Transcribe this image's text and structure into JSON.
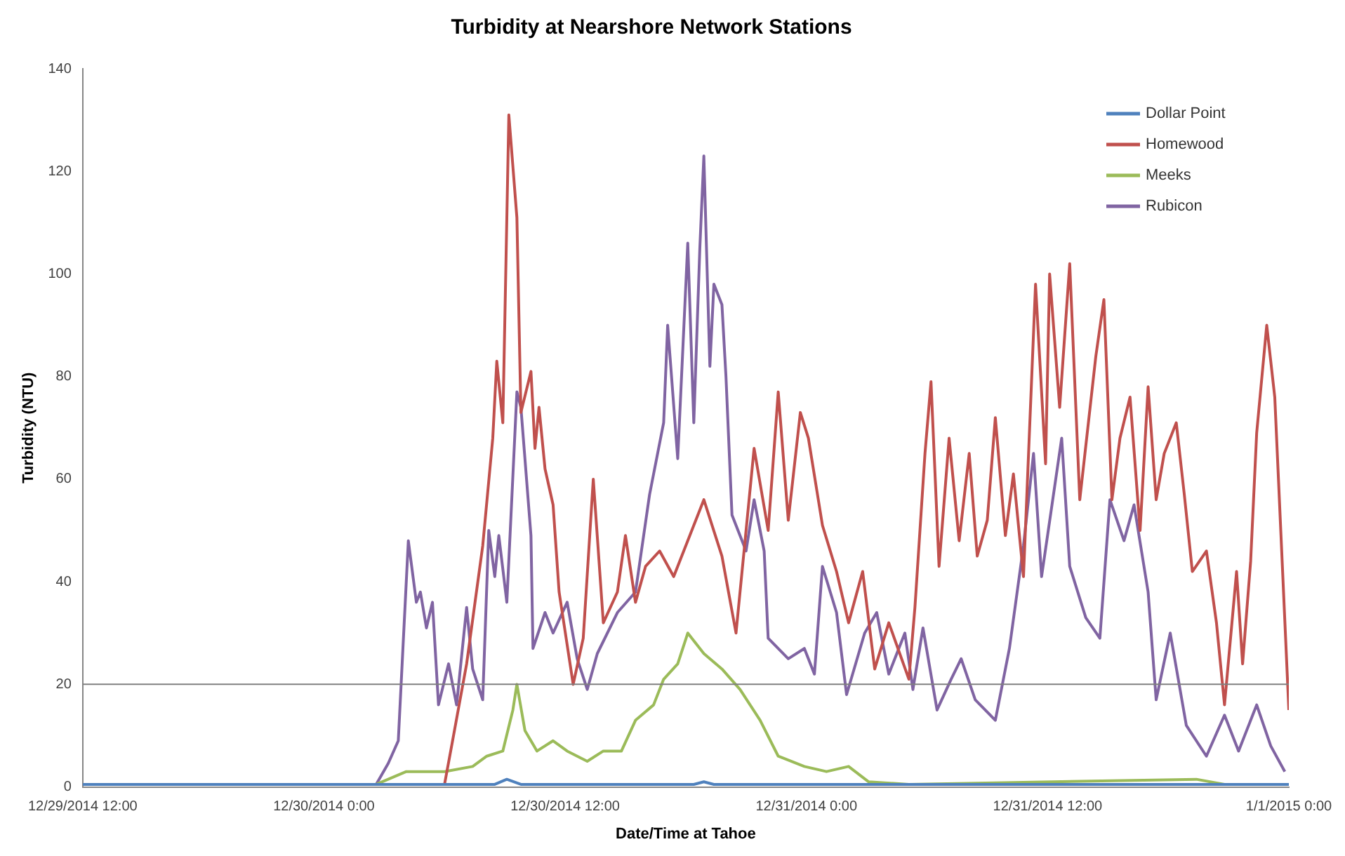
{
  "chart_data": {
    "type": "line",
    "title": "Turbidity at Nearshore Network Stations",
    "xlabel": "Date/Time at Tahoe",
    "ylabel": "Turbidity (NTU)",
    "xlim": [
      "2014-12-29T12:00",
      "2015-01-01T00:00"
    ],
    "xticks": [
      {
        "value": "2014-12-29T12:00",
        "label": "12/29/2014 12:00"
      },
      {
        "value": "2014-12-30T00:00",
        "label": "12/30/2014 0:00"
      },
      {
        "value": "2014-12-30T12:00",
        "label": "12/30/2014 12:00"
      },
      {
        "value": "2014-12-31T00:00",
        "label": "12/31/2014 0:00"
      },
      {
        "value": "2014-12-31T12:00",
        "label": "12/31/2014 12:00"
      },
      {
        "value": "2015-01-01T00:00",
        "label": "1/1/2015 0:00"
      }
    ],
    "ylim": [
      0,
      140
    ],
    "yticks": [
      0,
      20,
      40,
      60,
      80,
      100,
      120,
      140
    ],
    "grid": false,
    "legend": "top right",
    "marker": "none",
    "line_style": "solid",
    "ref_lines": [
      {
        "axis": "y",
        "value": 20,
        "color": "#7f7f7f"
      }
    ],
    "series": [
      {
        "name": "Dollar Point",
        "color": "#4f81bd",
        "x": [
          "2014-12-29T12:00",
          "2014-12-30T08:30",
          "2014-12-30T09:06",
          "2014-12-30T09:48",
          "2014-12-30T18:24",
          "2014-12-30T18:54",
          "2014-12-30T19:24",
          "2015-01-01T00:00"
        ],
        "values": [
          0.5,
          0.5,
          1.5,
          0.5,
          0.5,
          1,
          0.5,
          0.5
        ]
      },
      {
        "name": "Homewood",
        "color": "#c0504d",
        "x": [
          "2014-12-29T12:00",
          "2014-12-30T06:00",
          "2014-12-30T06:24",
          "2014-12-30T07:06",
          "2014-12-30T07:54",
          "2014-12-30T08:24",
          "2014-12-30T08:36",
          "2014-12-30T08:54",
          "2014-12-30T09:12",
          "2014-12-30T09:36",
          "2014-12-30T09:48",
          "2014-12-30T10:18",
          "2014-12-30T10:30",
          "2014-12-30T10:42",
          "2014-12-30T11:00",
          "2014-12-30T11:24",
          "2014-12-30T11:42",
          "2014-12-30T12:24",
          "2014-12-30T12:54",
          "2014-12-30T13:24",
          "2014-12-30T13:54",
          "2014-12-30T14:36",
          "2014-12-30T15:00",
          "2014-12-30T15:30",
          "2014-12-30T16:00",
          "2014-12-30T16:42",
          "2014-12-30T17:24",
          "2014-12-30T18:54",
          "2014-12-30T19:48",
          "2014-12-30T20:30",
          "2014-12-30T21:24",
          "2014-12-30T22:06",
          "2014-12-30T22:36",
          "2014-12-30T23:06",
          "2014-12-30T23:42",
          "2014-12-31T00:06",
          "2014-12-31T00:48",
          "2014-12-31T01:30",
          "2014-12-31T02:06",
          "2014-12-31T02:48",
          "2014-12-31T03:24",
          "2014-12-31T04:06",
          "2014-12-31T05:06",
          "2014-12-31T05:24",
          "2014-12-31T05:54",
          "2014-12-31T06:12",
          "2014-12-31T06:36",
          "2014-12-31T07:06",
          "2014-12-31T07:36",
          "2014-12-31T08:06",
          "2014-12-31T08:30",
          "2014-12-31T09:00",
          "2014-12-31T09:24",
          "2014-12-31T09:54",
          "2014-12-31T10:18",
          "2014-12-31T10:48",
          "2014-12-31T11:24",
          "2014-12-31T11:54",
          "2014-12-31T12:06",
          "2014-12-31T12:36",
          "2014-12-31T13:06",
          "2014-12-31T13:36",
          "2014-12-31T14:24",
          "2014-12-31T14:48",
          "2014-12-31T15:12",
          "2014-12-31T15:36",
          "2014-12-31T16:06",
          "2014-12-31T16:36",
          "2014-12-31T17:00",
          "2014-12-31T17:24",
          "2014-12-31T17:48",
          "2014-12-31T18:24",
          "2014-12-31T18:48",
          "2014-12-31T19:12",
          "2014-12-31T19:54",
          "2014-12-31T20:24",
          "2014-12-31T20:48",
          "2014-12-31T21:24",
          "2014-12-31T21:42",
          "2014-12-31T22:06",
          "2014-12-31T22:24",
          "2014-12-31T22:54",
          "2014-12-31T23:18",
          "2015-01-01T00:00"
        ],
        "values": [
          0.5,
          0.5,
          9,
          24,
          47,
          68,
          83,
          71,
          131,
          111,
          73,
          81,
          66,
          74,
          62,
          55,
          38,
          20,
          29,
          60,
          32,
          38,
          49,
          36,
          43,
          46,
          41,
          56,
          45,
          30,
          66,
          50,
          77,
          52,
          73,
          68,
          51,
          42,
          32,
          42,
          23,
          32,
          21,
          35,
          65,
          79,
          43,
          68,
          48,
          65,
          45,
          52,
          72,
          49,
          61,
          41,
          98,
          63,
          100,
          74,
          102,
          56,
          84,
          95,
          56,
          68,
          76,
          50,
          78,
          56,
          65,
          71,
          57,
          42,
          46,
          32,
          16,
          42,
          24,
          44,
          69,
          90,
          76,
          15
        ]
      },
      {
        "name": "Meeks",
        "color": "#9bbb59",
        "x": [
          "2014-12-29T12:00",
          "2014-12-30T02:36",
          "2014-12-30T04:06",
          "2014-12-30T06:00",
          "2014-12-30T07:24",
          "2014-12-30T08:06",
          "2014-12-30T08:54",
          "2014-12-30T09:24",
          "2014-12-30T09:36",
          "2014-12-30T10:00",
          "2014-12-30T10:36",
          "2014-12-30T11:24",
          "2014-12-30T12:06",
          "2014-12-30T13:06",
          "2014-12-30T13:54",
          "2014-12-30T14:48",
          "2014-12-30T15:30",
          "2014-12-30T16:24",
          "2014-12-30T16:54",
          "2014-12-30T17:36",
          "2014-12-30T18:06",
          "2014-12-30T18:54",
          "2014-12-30T19:48",
          "2014-12-30T20:42",
          "2014-12-30T21:42",
          "2014-12-30T22:36",
          "2014-12-30T23:54",
          "2014-12-31T01:00",
          "2014-12-31T02:06",
          "2014-12-31T03:06",
          "2014-12-31T05:06",
          "2014-12-31T19:24",
          "2014-12-31T20:48",
          "2015-01-01T00:00"
        ],
        "values": [
          0.5,
          0.5,
          3,
          3,
          4,
          6,
          7,
          15,
          20,
          11,
          7,
          9,
          7,
          5,
          7,
          7,
          13,
          16,
          21,
          24,
          30,
          26,
          23,
          19,
          13,
          6,
          4,
          3,
          4,
          1,
          0.5,
          1.5,
          0.5,
          0.5
        ]
      },
      {
        "name": "Rubicon",
        "color": "#8064a2",
        "x": [
          "2014-12-29T12:00",
          "2014-12-30T02:36",
          "2014-12-30T03:12",
          "2014-12-30T03:42",
          "2014-12-30T04:12",
          "2014-12-30T04:36",
          "2014-12-30T04:48",
          "2014-12-30T05:06",
          "2014-12-30T05:24",
          "2014-12-30T05:42",
          "2014-12-30T06:12",
          "2014-12-30T06:36",
          "2014-12-30T07:06",
          "2014-12-30T07:24",
          "2014-12-30T07:54",
          "2014-12-30T08:12",
          "2014-12-30T08:30",
          "2014-12-30T08:42",
          "2014-12-30T09:06",
          "2014-12-30T09:36",
          "2014-12-30T09:48",
          "2014-12-30T10:18",
          "2014-12-30T10:24",
          "2014-12-30T11:00",
          "2014-12-30T11:24",
          "2014-12-30T12:06",
          "2014-12-30T12:36",
          "2014-12-30T13:06",
          "2014-12-30T13:36",
          "2014-12-30T14:36",
          "2014-12-30T15:30",
          "2014-12-30T16:12",
          "2014-12-30T16:54",
          "2014-12-30T17:06",
          "2014-12-30T17:36",
          "2014-12-30T18:06",
          "2014-12-30T18:24",
          "2014-12-30T18:42",
          "2014-12-30T18:54",
          "2014-12-30T19:12",
          "2014-12-30T19:24",
          "2014-12-30T19:48",
          "2014-12-30T20:00",
          "2014-12-30T20:18",
          "2014-12-30T21:00",
          "2014-12-30T21:24",
          "2014-12-30T21:54",
          "2014-12-30T22:06",
          "2014-12-30T23:06",
          "2014-12-30T23:54",
          "2014-12-31T00:24",
          "2014-12-31T00:48",
          "2014-12-31T01:30",
          "2014-12-31T02:00",
          "2014-12-31T02:54",
          "2014-12-31T03:30",
          "2014-12-31T04:06",
          "2014-12-31T04:54",
          "2014-12-31T05:18",
          "2014-12-31T05:48",
          "2014-12-31T06:30",
          "2014-12-31T07:12",
          "2014-12-31T07:42",
          "2014-12-31T08:24",
          "2014-12-31T09:24",
          "2014-12-31T10:06",
          "2014-12-31T10:48",
          "2014-12-31T11:18",
          "2014-12-31T11:42",
          "2014-12-31T12:42",
          "2014-12-31T13:06",
          "2014-12-31T13:54",
          "2014-12-31T14:36",
          "2014-12-31T15:06",
          "2014-12-31T15:48",
          "2014-12-31T16:18",
          "2014-12-31T17:00",
          "2014-12-31T17:24",
          "2014-12-31T18:06",
          "2014-12-31T18:54",
          "2014-12-31T19:54",
          "2014-12-31T20:48",
          "2014-12-31T21:30",
          "2014-12-31T22:24",
          "2014-12-31T23:06",
          "2014-12-31T23:48"
        ],
        "values": [
          0.5,
          0.5,
          4.6,
          9,
          48,
          36,
          38,
          31,
          36,
          16,
          24,
          16,
          35,
          23,
          17,
          50,
          41,
          49,
          36,
          77,
          74,
          49,
          27,
          34,
          30,
          36,
          25,
          19,
          26,
          34,
          38,
          57,
          71,
          90,
          64,
          106,
          71,
          105,
          123,
          82,
          98,
          94,
          80,
          53,
          46,
          56,
          46,
          29,
          25,
          27,
          22,
          43,
          34,
          18,
          30,
          34,
          22,
          30,
          19,
          31,
          15,
          21,
          25,
          17,
          13,
          27,
          47,
          65,
          41,
          68,
          43,
          33,
          29,
          56,
          48,
          55,
          38,
          17,
          30,
          12,
          6,
          14,
          7,
          16,
          8,
          3
        ]
      }
    ]
  }
}
